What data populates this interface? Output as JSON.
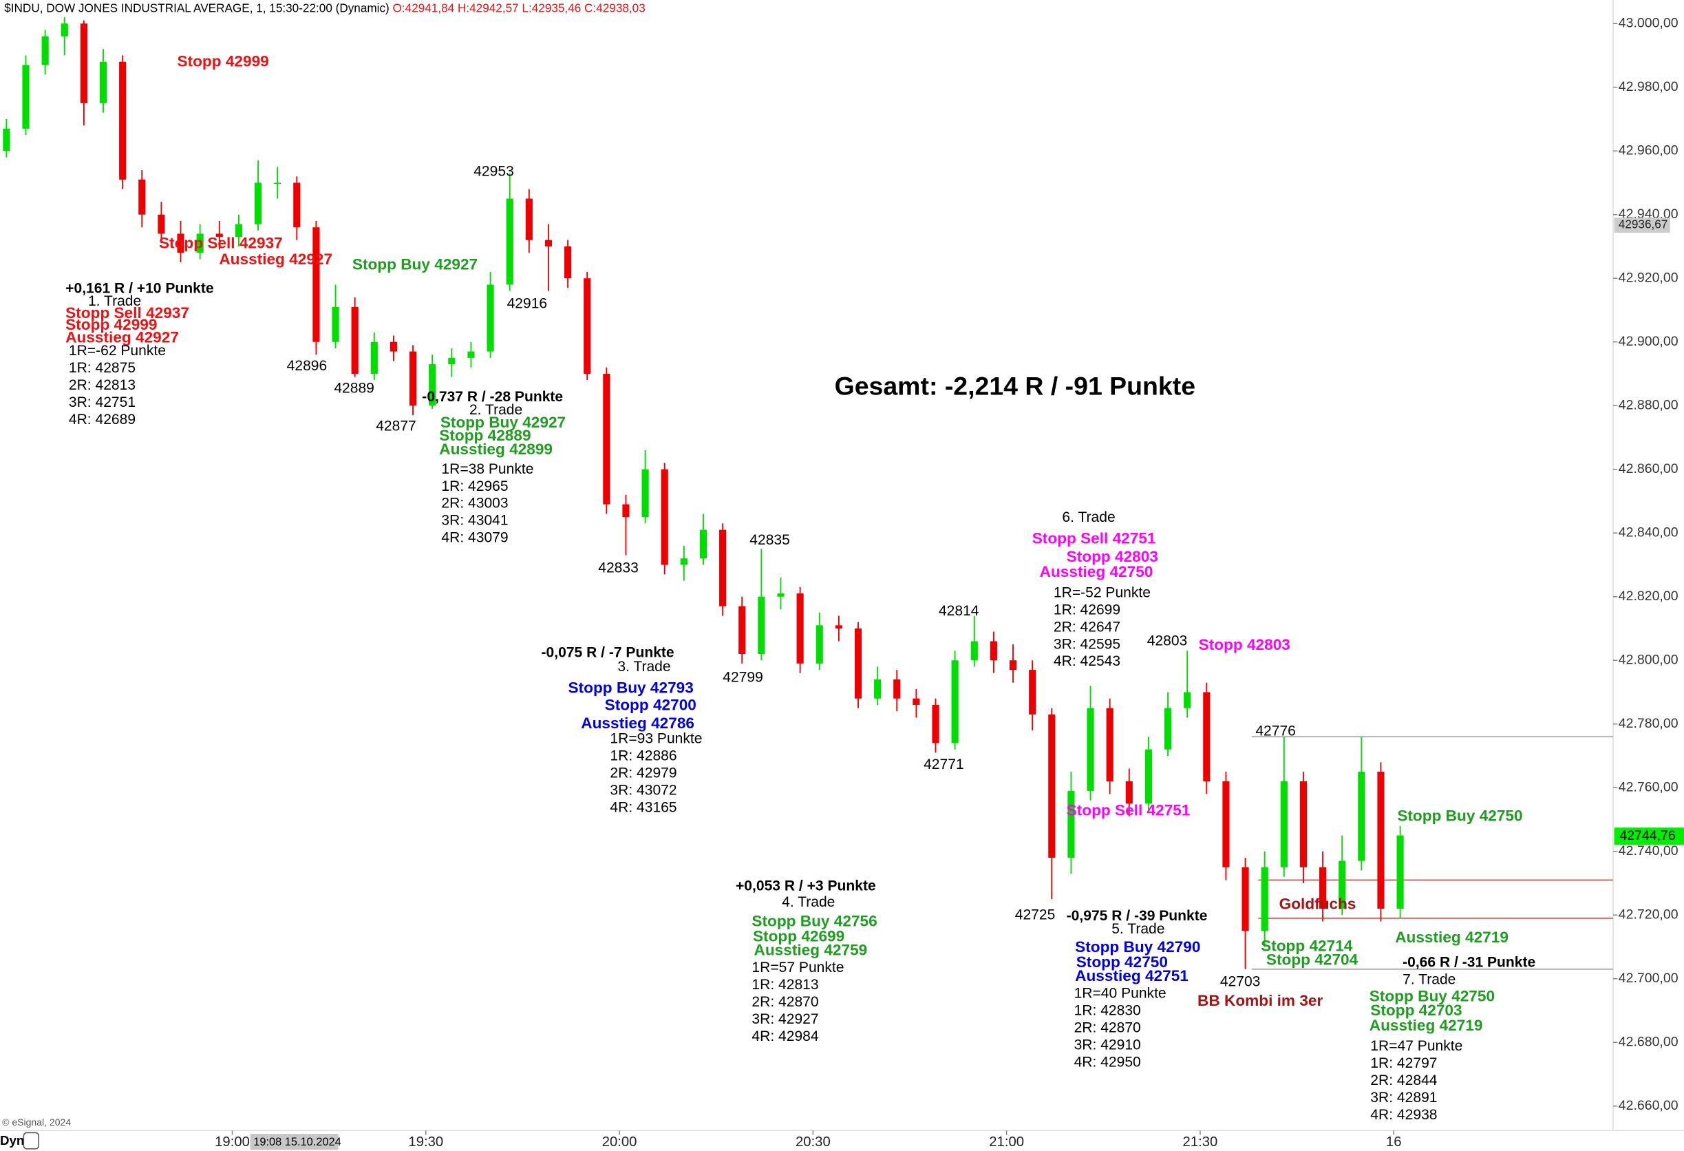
{
  "chart_data": {
    "type": "candlestick",
    "header": "$INDU, DOW JONES INDUSTRIAL AVERAGE, 1, 15:30-22:00 (Dynamic)",
    "ohlc": "O:42941,84 H:42942,57 L:42935,46 C:42938,03",
    "footer": "© eSignal, 2024",
    "mode": "Dyn",
    "cursor_date": "19:08 15.10.2024",
    "up_color": "#00dd00",
    "down_color": "#ee0000",
    "xlim": [
      "18:24",
      "22:34"
    ],
    "ylim": [
      42652.3,
      43007.4
    ],
    "xticks": [
      "19:00",
      "19:30",
      "20:00",
      "20:30",
      "21:00",
      "21:30",
      {
        "value": "22:00",
        "label": "16"
      }
    ],
    "yticks": [
      {
        "value": 42660,
        "label": "42.660,00"
      },
      {
        "value": 42680,
        "label": "42.680,00"
      },
      {
        "value": 42700,
        "label": "42.700,00"
      },
      {
        "value": 42720,
        "label": "42.720,00"
      },
      {
        "value": 42740,
        "label": "42.740,00"
      },
      {
        "value": 42760,
        "label": "42.760,00"
      },
      {
        "value": 42780,
        "label": "42.780,00"
      },
      {
        "value": 42800,
        "label": "42.800,00"
      },
      {
        "value": 42820,
        "label": "42.820,00"
      },
      {
        "value": 42840,
        "label": "42.840,00"
      },
      {
        "value": 42860,
        "label": "42.860,00"
      },
      {
        "value": 42880,
        "label": "42.880,00"
      },
      {
        "value": 42900,
        "label": "42.900,00"
      },
      {
        "value": 42920,
        "label": "42.920,00"
      },
      {
        "value": 42940,
        "label": "42.940,00"
      },
      {
        "value": 42960,
        "label": "42.960,00"
      },
      {
        "value": 42980,
        "label": "42.980,00"
      },
      {
        "value": 43000,
        "label": "43.000,00"
      }
    ],
    "cursor_price": {
      "value": 42936.67,
      "label": "42936,67"
    },
    "last_price": {
      "value": 42744.76,
      "label": "42744,76"
    },
    "levels": [
      {
        "value": 42776,
        "from": "21:38",
        "color": "#999999"
      },
      {
        "value": 42731,
        "from": "21:39",
        "color": "#dd3333"
      },
      {
        "value": 42719,
        "from": "21:39",
        "color": "#dd3333"
      },
      {
        "value": 42703,
        "from": "21:38",
        "color": "#999999"
      }
    ],
    "x": [
      "18:25",
      "18:28",
      "18:31",
      "18:34",
      "18:37",
      "18:40",
      "18:43",
      "18:46",
      "18:49",
      "18:52",
      "18:55",
      "18:58",
      "19:01",
      "19:04",
      "19:07",
      "19:10",
      "19:13",
      "19:16",
      "19:19",
      "19:22",
      "19:25",
      "19:28",
      "19:31",
      "19:34",
      "19:37",
      "19:40",
      "19:43",
      "19:46",
      "19:49",
      "19:52",
      "19:55",
      "19:58",
      "20:01",
      "20:04",
      "20:07",
      "20:10",
      "20:13",
      "20:16",
      "20:19",
      "20:22",
      "20:25",
      "20:28",
      "20:31",
      "20:34",
      "20:37",
      "20:40",
      "20:43",
      "20:46",
      "20:49",
      "20:52",
      "20:55",
      "20:58",
      "21:01",
      "21:04",
      "21:07",
      "21:10",
      "21:13",
      "21:16",
      "21:19",
      "21:22",
      "21:25",
      "21:28",
      "21:31",
      "21:34",
      "21:37",
      "21:40",
      "21:43",
      "21:46",
      "21:49",
      "21:52",
      "21:55",
      "21:58",
      "22:01"
    ],
    "candles": [
      [
        42960,
        42970,
        42958,
        42967
      ],
      [
        42967,
        42990,
        42965,
        42987
      ],
      [
        42987,
        42998,
        42984,
        42996
      ],
      [
        42996,
        43002,
        42990,
        43000
      ],
      [
        43000,
        43001,
        42968,
        42975
      ],
      [
        42975,
        42992,
        42972,
        42988
      ],
      [
        42988,
        42990,
        42948,
        42951
      ],
      [
        42951,
        42954,
        42936,
        42940
      ],
      [
        42940,
        42944,
        42931,
        42934
      ],
      [
        42934,
        42938,
        42925,
        42928
      ],
      [
        42928,
        42937,
        42926,
        42934
      ],
      [
        42934,
        42938,
        42929,
        42933
      ],
      [
        42933,
        42940,
        42930,
        42937
      ],
      [
        42937,
        42957,
        42935,
        42950
      ],
      [
        42950,
        42955,
        42945,
        42950
      ],
      [
        42950,
        42952,
        42932,
        42936
      ],
      [
        42936,
        42938,
        42896,
        42900
      ],
      [
        42900,
        42918,
        42898,
        42911
      ],
      [
        42911,
        42914,
        42889,
        42890
      ],
      [
        42890,
        42903,
        42888,
        42900
      ],
      [
        42900,
        42902,
        42894,
        42897
      ],
      [
        42897,
        42899,
        42877,
        42880
      ],
      [
        42880,
        42896,
        42879,
        42893
      ],
      [
        42893,
        42898,
        42889,
        42895
      ],
      [
        42895,
        42900,
        42892,
        42897
      ],
      [
        42897,
        42922,
        42895,
        42918
      ],
      [
        42918,
        42953,
        42916,
        42945
      ],
      [
        42945,
        42948,
        42928,
        42932
      ],
      [
        42932,
        42937,
        42916,
        42930
      ],
      [
        42930,
        42932,
        42917,
        42920
      ],
      [
        42920,
        42922,
        42888,
        42890
      ],
      [
        42890,
        42892,
        42846,
        42849
      ],
      [
        42849,
        42852,
        42833,
        42845
      ],
      [
        42845,
        42866,
        42843,
        42860
      ],
      [
        42860,
        42862,
        42827,
        42830
      ],
      [
        42830,
        42836,
        42825,
        42832
      ],
      [
        42832,
        42846,
        42830,
        42841
      ],
      [
        42841,
        42843,
        42814,
        42817
      ],
      [
        42817,
        42820,
        42799,
        42802
      ],
      [
        42802,
        42835,
        42800,
        42820
      ],
      [
        42820,
        42826,
        42816,
        42821
      ],
      [
        42821,
        42823,
        42796,
        42799
      ],
      [
        42799,
        42815,
        42797,
        42811
      ],
      [
        42811,
        42814,
        42806,
        42810
      ],
      [
        42810,
        42812,
        42785,
        42788
      ],
      [
        42788,
        42798,
        42786,
        42794
      ],
      [
        42794,
        42797,
        42784,
        42788
      ],
      [
        42788,
        42791,
        42782,
        42786
      ],
      [
        42786,
        42788,
        42771,
        42774
      ],
      [
        42774,
        42803,
        42772,
        42800
      ],
      [
        42800,
        42814,
        42798,
        42806
      ],
      [
        42806,
        42809,
        42796,
        42800
      ],
      [
        42800,
        42805,
        42793,
        42797
      ],
      [
        42797,
        42800,
        42778,
        42783
      ],
      [
        42783,
        42785,
        42725,
        42738
      ],
      [
        42738,
        42765,
        42733,
        42759
      ],
      [
        42759,
        42792,
        42756,
        42785
      ],
      [
        42785,
        42788,
        42758,
        42762
      ],
      [
        42762,
        42766,
        42751,
        42755
      ],
      [
        42755,
        42776,
        42753,
        42772
      ],
      [
        42772,
        42790,
        42770,
        42785
      ],
      [
        42785,
        42803,
        42782,
        42790
      ],
      [
        42790,
        42793,
        42758,
        42762
      ],
      [
        42762,
        42765,
        42731,
        42735
      ],
      [
        42735,
        42738,
        42703,
        42715
      ],
      [
        42715,
        42740,
        42710,
        42735
      ],
      [
        42735,
        42776,
        42732,
        42762
      ],
      [
        42762,
        42765,
        42730,
        42735
      ],
      [
        42735,
        42740,
        42718,
        42722
      ],
      [
        42722,
        42745,
        42720,
        42737
      ],
      [
        42737,
        42776,
        42734,
        42765
      ],
      [
        42765,
        42768,
        42718,
        42722
      ],
      [
        42722,
        42748,
        42719,
        42745
      ]
    ],
    "annotations": [
      {
        "text": "Stopp 42999",
        "color": "#ee1111"
      },
      {
        "text": "Stopp Sell 42937",
        "color": "#ee1111"
      },
      {
        "text": "Ausstieg 42927",
        "color": "#ee1111"
      },
      {
        "text": "Stopp Buy 42927",
        "color": "#1e9e1e"
      },
      {
        "text": "+0,161 R / +10 Punkte",
        "color": "#000000"
      },
      {
        "text": "1. Trade",
        "color": "#000000"
      },
      {
        "text": "Stopp Sell 42937",
        "color": "#ee1111"
      },
      {
        "text": "Stopp 42999",
        "color": "#ee1111"
      },
      {
        "text": "Ausstieg 42927",
        "color": "#ee1111"
      },
      {
        "text": "1R=-62 Punkte",
        "color": "#000000"
      },
      {
        "text": "1R: 42875",
        "color": "#000000"
      },
      {
        "text": "2R: 42813",
        "color": "#000000"
      },
      {
        "text": "3R: 42751",
        "color": "#000000"
      },
      {
        "text": "4R: 42689",
        "color": "#000000"
      },
      {
        "text": "42953",
        "color": "#000000"
      },
      {
        "text": "42916",
        "color": "#000000"
      },
      {
        "text": "42896",
        "color": "#000000"
      },
      {
        "text": "42889",
        "color": "#000000"
      },
      {
        "text": "42877",
        "color": "#000000"
      },
      {
        "text": "-0,737 R / -28 Punkte",
        "color": "#000000"
      },
      {
        "text": "2. Trade",
        "color": "#000000"
      },
      {
        "text": "Stopp Buy 42927",
        "color": "#1e9e1e"
      },
      {
        "text": "Stopp 42889",
        "color": "#1e9e1e"
      },
      {
        "text": "Ausstieg 42899",
        "color": "#1e9e1e"
      },
      {
        "text": "1R=38 Punkte",
        "color": "#000000"
      },
      {
        "text": "1R: 42965",
        "color": "#000000"
      },
      {
        "text": "2R: 43003",
        "color": "#000000"
      },
      {
        "text": "3R: 43041",
        "color": "#000000"
      },
      {
        "text": "4R: 43079",
        "color": "#000000"
      },
      {
        "text": "Gesamt: -2,214 R / -91 Punkte",
        "color": "#000000"
      },
      {
        "text": "42833",
        "color": "#000000"
      },
      {
        "text": "42835",
        "color": "#000000"
      },
      {
        "text": "-0,075 R / -7 Punkte",
        "color": "#000000"
      },
      {
        "text": "3. Trade",
        "color": "#000000"
      },
      {
        "text": "Stopp Buy 42793",
        "color": "#0000e0"
      },
      {
        "text": "Stopp 42700",
        "color": "#0000e0"
      },
      {
        "text": "Ausstieg 42786",
        "color": "#0000e0"
      },
      {
        "text": "1R=93 Punkte",
        "color": "#000000"
      },
      {
        "text": "1R: 42886",
        "color": "#000000"
      },
      {
        "text": "2R: 42979",
        "color": "#000000"
      },
      {
        "text": "3R: 43072",
        "color": "#000000"
      },
      {
        "text": "4R: 43165",
        "color": "#000000"
      },
      {
        "text": "42799",
        "color": "#000000"
      },
      {
        "text": "42814",
        "color": "#000000"
      },
      {
        "text": "42771",
        "color": "#000000"
      },
      {
        "text": "6. Trade",
        "color": "#000000"
      },
      {
        "text": "Stopp Sell 42751",
        "color": "#ff00ff"
      },
      {
        "text": "Stopp 42803",
        "color": "#ff00ff"
      },
      {
        "text": "Ausstieg 42750",
        "color": "#ff00ff"
      },
      {
        "text": "1R=-52 Punkte",
        "color": "#000000"
      },
      {
        "text": "1R: 42699",
        "color": "#000000"
      },
      {
        "text": "2R: 42647",
        "color": "#000000"
      },
      {
        "text": "3R: 42595",
        "color": "#000000"
      },
      {
        "text": "4R: 42543",
        "color": "#000000"
      },
      {
        "text": "42803",
        "color": "#000000"
      },
      {
        "text": "Stopp 42803",
        "color": "#ff00ff"
      },
      {
        "text": "+0,053 R / +3 Punkte",
        "color": "#000000"
      },
      {
        "text": "4. Trade",
        "color": "#000000"
      },
      {
        "text": "Stopp Buy 42756",
        "color": "#1e9e1e"
      },
      {
        "text": "Stopp 42699",
        "color": "#1e9e1e"
      },
      {
        "text": "Ausstieg 42759",
        "color": "#1e9e1e"
      },
      {
        "text": "1R=57 Punkte",
        "color": "#000000"
      },
      {
        "text": "1R: 42813",
        "color": "#000000"
      },
      {
        "text": "2R: 42870",
        "color": "#000000"
      },
      {
        "text": "3R: 42927",
        "color": "#000000"
      },
      {
        "text": "4R: 42984",
        "color": "#000000"
      },
      {
        "text": "Stopp Sell 42751",
        "color": "#ff00ff"
      },
      {
        "text": "42725",
        "color": "#000000"
      },
      {
        "text": "-0,975 R / -39 Punkte",
        "color": "#000000"
      },
      {
        "text": "5. Trade",
        "color": "#000000"
      },
      {
        "text": "Stopp Buy 42790",
        "color": "#0000e0"
      },
      {
        "text": "Stopp 42750",
        "color": "#0000e0"
      },
      {
        "text": "Ausstieg 42751",
        "color": "#0000e0"
      },
      {
        "text": "1R=40 Punkte",
        "color": "#000000"
      },
      {
        "text": "1R: 42830",
        "color": "#000000"
      },
      {
        "text": "2R: 42870",
        "color": "#000000"
      },
      {
        "text": "3R: 42910",
        "color": "#000000"
      },
      {
        "text": "4R: 42950",
        "color": "#000000"
      },
      {
        "text": "42776",
        "color": "#000000"
      },
      {
        "text": "Stopp Buy 42750",
        "color": "#1e9e1e"
      },
      {
        "text": "Goldfuchs",
        "color": "#a31515"
      },
      {
        "text": "Ausstieg 42719",
        "color": "#1e9e1e"
      },
      {
        "text": "Stopp 42714",
        "color": "#1e9e1e"
      },
      {
        "text": "Stopp 42704",
        "color": "#1e9e1e"
      },
      {
        "text": "-0,66 R / -31 Punkte",
        "color": "#000000"
      },
      {
        "text": "42703",
        "color": "#000000"
      },
      {
        "text": "7. Trade",
        "color": "#000000"
      },
      {
        "text": "BB Kombi im 3er",
        "color": "#a31515"
      },
      {
        "text": "Stopp Buy 42750",
        "color": "#1e9e1e"
      },
      {
        "text": "Stopp 42703",
        "color": "#1e9e1e"
      },
      {
        "text": "Ausstieg 42719",
        "color": "#1e9e1e"
      },
      {
        "text": "1R=47 Punkte",
        "color": "#000000"
      },
      {
        "text": "1R: 42797",
        "color": "#000000"
      },
      {
        "text": "2R: 42844",
        "color": "#000000"
      },
      {
        "text": "3R: 42891",
        "color": "#000000"
      },
      {
        "text": "4R: 42938",
        "color": "#000000"
      }
    ]
  }
}
